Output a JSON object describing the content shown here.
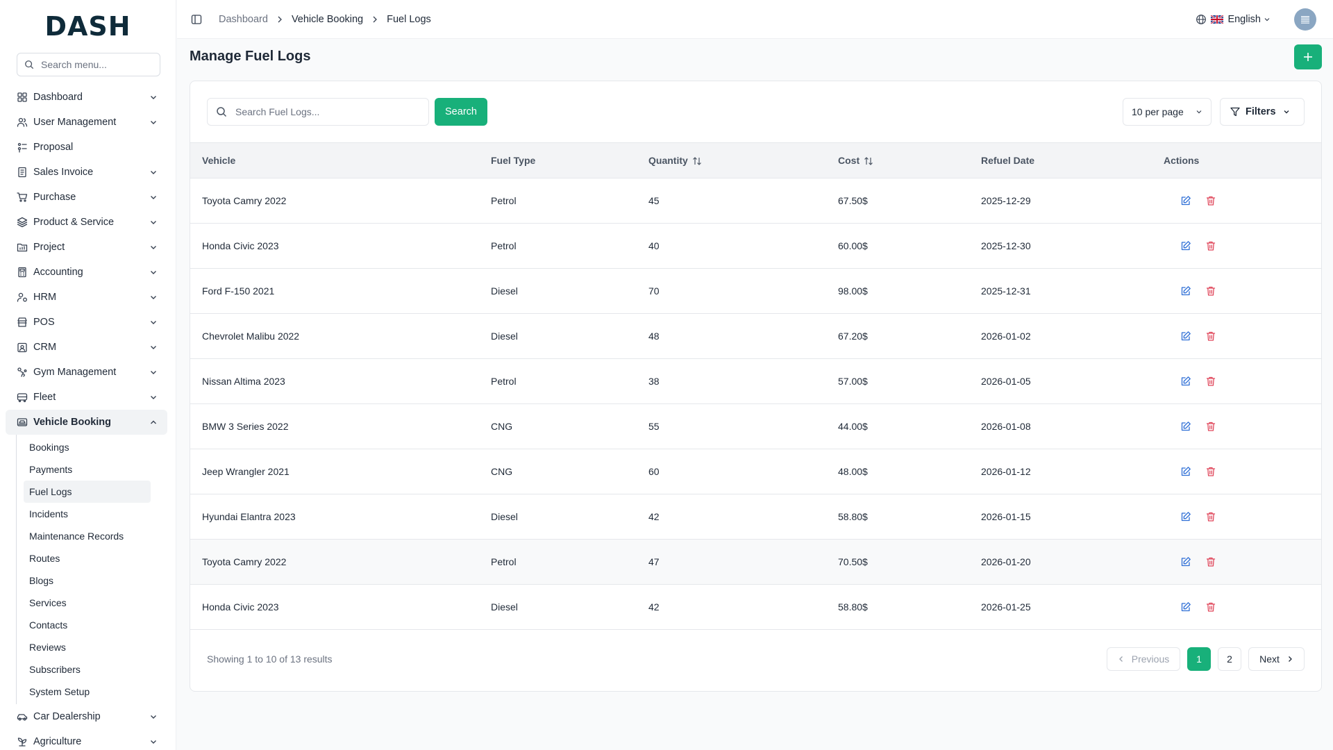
{
  "brand": {
    "logo_text": "DASH",
    "accent": "#18b07a"
  },
  "sidebar": {
    "search_placeholder": "Search menu...",
    "items": [
      {
        "label": "Dashboard",
        "icon": "grid-icon",
        "has_children": true
      },
      {
        "label": "User Management",
        "icon": "users-icon",
        "has_children": true
      },
      {
        "label": "Proposal",
        "icon": "proposal-icon",
        "has_children": false
      },
      {
        "label": "Sales Invoice",
        "icon": "invoice-icon",
        "has_children": true
      },
      {
        "label": "Purchase",
        "icon": "cart-icon",
        "has_children": true
      },
      {
        "label": "Product & Service",
        "icon": "layers-icon",
        "has_children": true
      },
      {
        "label": "Project",
        "icon": "folder-icon",
        "has_children": true
      },
      {
        "label": "Accounting",
        "icon": "calculator-icon",
        "has_children": true
      },
      {
        "label": "HRM",
        "icon": "hrm-icon",
        "has_children": true
      },
      {
        "label": "POS",
        "icon": "store-icon",
        "has_children": true
      },
      {
        "label": "CRM",
        "icon": "crm-icon",
        "has_children": true
      },
      {
        "label": "Gym Management",
        "icon": "dumbbell-icon",
        "has_children": true
      },
      {
        "label": "Fleet",
        "icon": "truck-icon",
        "has_children": true
      },
      {
        "label": "Vehicle Booking",
        "icon": "car-booking-icon",
        "has_children": true,
        "expanded": true
      },
      {
        "label": "Car Dealership",
        "icon": "car-icon",
        "has_children": true
      },
      {
        "label": "Agriculture",
        "icon": "plant-icon",
        "has_children": true
      }
    ],
    "vehicle_booking_children": [
      "Bookings",
      "Payments",
      "Fuel Logs",
      "Incidents",
      "Maintenance Records",
      "Routes",
      "Blogs",
      "Services",
      "Contacts",
      "Reviews",
      "Subscribers",
      "System Setup"
    ],
    "active_child": "Fuel Logs"
  },
  "topbar": {
    "breadcrumb": [
      "Dashboard",
      "Vehicle Booking",
      "Fuel Logs"
    ],
    "language": "English"
  },
  "page": {
    "title": "Manage Fuel Logs"
  },
  "toolbar": {
    "search_placeholder": "Search Fuel Logs...",
    "search_button": "Search",
    "per_page": "10 per page",
    "filters": "Filters"
  },
  "table": {
    "columns": [
      "Vehicle",
      "Fuel Type",
      "Quantity",
      "Cost",
      "Refuel Date",
      "Actions"
    ],
    "rows": [
      {
        "vehicle": "Toyota Camry 2022",
        "fuel_type": "Petrol",
        "quantity": "45",
        "cost": "67.50$",
        "date": "2025-12-29"
      },
      {
        "vehicle": "Honda Civic 2023",
        "fuel_type": "Petrol",
        "quantity": "40",
        "cost": "60.00$",
        "date": "2025-12-30"
      },
      {
        "vehicle": "Ford F-150 2021",
        "fuel_type": "Diesel",
        "quantity": "70",
        "cost": "98.00$",
        "date": "2025-12-31"
      },
      {
        "vehicle": "Chevrolet Malibu 2022",
        "fuel_type": "Diesel",
        "quantity": "48",
        "cost": "67.20$",
        "date": "2026-01-02"
      },
      {
        "vehicle": "Nissan Altima 2023",
        "fuel_type": "Petrol",
        "quantity": "38",
        "cost": "57.00$",
        "date": "2026-01-05"
      },
      {
        "vehicle": "BMW 3 Series 2022",
        "fuel_type": "CNG",
        "quantity": "55",
        "cost": "44.00$",
        "date": "2026-01-08"
      },
      {
        "vehicle": "Jeep Wrangler 2021",
        "fuel_type": "CNG",
        "quantity": "60",
        "cost": "48.00$",
        "date": "2026-01-12"
      },
      {
        "vehicle": "Hyundai Elantra 2023",
        "fuel_type": "Diesel",
        "quantity": "42",
        "cost": "58.80$",
        "date": "2026-01-15"
      },
      {
        "vehicle": "Toyota Camry 2022",
        "fuel_type": "Petrol",
        "quantity": "47",
        "cost": "70.50$",
        "date": "2026-01-20"
      },
      {
        "vehicle": "Honda Civic 2023",
        "fuel_type": "Diesel",
        "quantity": "42",
        "cost": "58.80$",
        "date": "2026-01-25"
      }
    ]
  },
  "pagination": {
    "summary": "Showing 1 to 10 of 13 results",
    "previous": "Previous",
    "pages": [
      "1",
      "2"
    ],
    "current": "1",
    "next": "Next"
  }
}
